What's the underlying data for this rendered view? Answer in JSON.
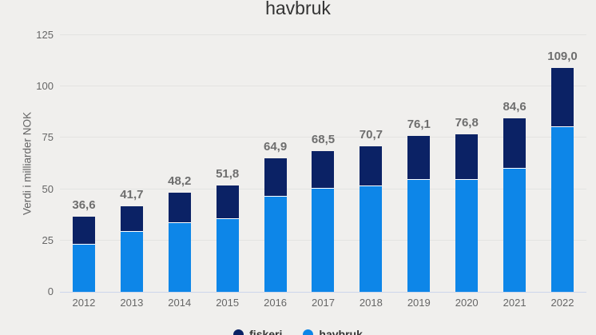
{
  "chart_data": {
    "type": "bar",
    "stacked": true,
    "title": "havbruk",
    "title_note": "title partially cut off at top of screenshot; only word 'havbruk' visible",
    "ylabel": "Verdi i milliarder NOK",
    "categories": [
      "2012",
      "2013",
      "2014",
      "2015",
      "2016",
      "2017",
      "2018",
      "2019",
      "2020",
      "2021",
      "2022"
    ],
    "series": [
      {
        "name": "fiskeri",
        "color": "#0b2265",
        "values": [
          13.6,
          12.4,
          14.7,
          16.2,
          18.5,
          18.4,
          19.2,
          21.4,
          22.4,
          24.8,
          28.7
        ]
      },
      {
        "name": "havbruk",
        "color": "#0d86e8",
        "values": [
          23.0,
          29.3,
          33.5,
          35.6,
          46.4,
          50.1,
          51.5,
          54.7,
          54.4,
          59.8,
          80.3
        ]
      }
    ],
    "totals": [
      36.6,
      41.7,
      48.2,
      51.8,
      64.9,
      68.5,
      70.7,
      76.1,
      76.8,
      84.6,
      109.0
    ],
    "total_labels": [
      "36,6",
      "41,7",
      "48,2",
      "51,8",
      "64,9",
      "68,5",
      "70,7",
      "76,1",
      "76,8",
      "84,6",
      "109,0"
    ],
    "yticks": [
      0,
      25,
      50,
      75,
      100,
      125
    ],
    "ylim": [
      0,
      125
    ],
    "grid": true,
    "legend_position": "bottom"
  },
  "colors": {
    "background": "#f0efed",
    "gridline": "#e3e3e1",
    "axis_line": "#ccd6eb",
    "tick_text": "#666666",
    "data_label_text": "#6e6e6e",
    "title_text": "#333333"
  }
}
